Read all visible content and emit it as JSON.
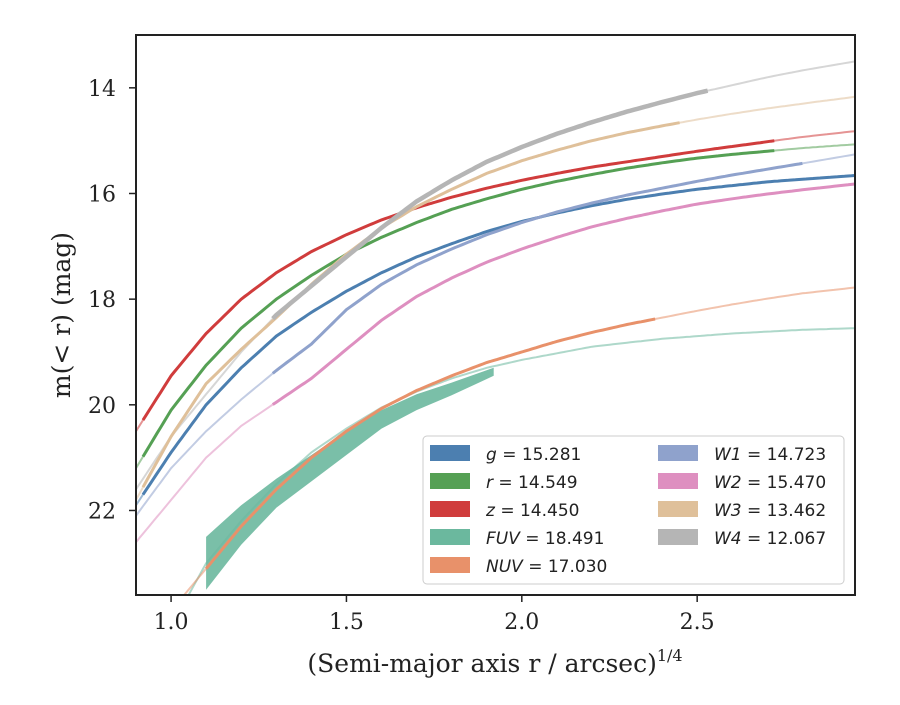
{
  "chart_data": {
    "type": "line",
    "title": "",
    "xlabel": "(Semi-major axis r / arcsec)",
    "xlabel_exponent": "1/4",
    "ylabel": "m(< r) (mag)",
    "xlim": [
      0.9,
      2.95
    ],
    "ylim": [
      23.6,
      13.0
    ],
    "y_inverted": true,
    "grid": false,
    "legend_position": "lower-right",
    "x_ticks": [
      1.0,
      1.5,
      2.0,
      2.5
    ],
    "x_tick_labels": [
      "1.0",
      "1.5",
      "2.0",
      "2.5"
    ],
    "y_ticks": [
      14,
      16,
      18,
      20,
      22
    ],
    "y_tick_labels": [
      "14",
      "16",
      "18",
      "20",
      "22"
    ],
    "series": [
      {
        "name": "g",
        "legend_value": "15.281",
        "color": "#4c7fb0",
        "x_data_min": 0.92,
        "x_data_max": 2.95,
        "x": [
          0.9,
          1.0,
          1.1,
          1.2,
          1.3,
          1.4,
          1.5,
          1.6,
          1.7,
          1.8,
          1.9,
          2.0,
          2.1,
          2.2,
          2.3,
          2.4,
          2.5,
          2.6,
          2.7,
          2.8,
          2.95
        ],
        "y": [
          21.9,
          20.9,
          20.0,
          19.3,
          18.7,
          18.25,
          17.85,
          17.5,
          17.2,
          16.95,
          16.72,
          16.53,
          16.37,
          16.23,
          16.11,
          16.01,
          15.92,
          15.85,
          15.78,
          15.73,
          15.66
        ]
      },
      {
        "name": "r",
        "legend_value": "14.549",
        "color": "#55a054",
        "x_data_min": 0.92,
        "x_data_max": 2.72,
        "x": [
          0.9,
          1.0,
          1.1,
          1.2,
          1.3,
          1.4,
          1.5,
          1.6,
          1.7,
          1.8,
          1.9,
          2.0,
          2.1,
          2.2,
          2.3,
          2.4,
          2.5,
          2.6,
          2.7,
          2.8,
          2.95
        ],
        "y": [
          21.2,
          20.1,
          19.25,
          18.55,
          18.0,
          17.55,
          17.15,
          16.83,
          16.55,
          16.3,
          16.1,
          15.92,
          15.77,
          15.64,
          15.52,
          15.42,
          15.33,
          15.26,
          15.2,
          15.14,
          15.07
        ]
      },
      {
        "name": "z",
        "legend_value": "14.450",
        "color": "#d03c3c",
        "x_data_min": 0.92,
        "x_data_max": 2.72,
        "x": [
          0.9,
          1.0,
          1.1,
          1.2,
          1.3,
          1.4,
          1.5,
          1.6,
          1.7,
          1.8,
          1.9,
          2.0,
          2.1,
          2.2,
          2.3,
          2.4,
          2.5,
          2.6,
          2.7,
          2.8,
          2.95
        ],
        "y": [
          20.5,
          19.45,
          18.65,
          18.0,
          17.5,
          17.1,
          16.78,
          16.5,
          16.27,
          16.07,
          15.9,
          15.75,
          15.62,
          15.5,
          15.4,
          15.3,
          15.2,
          15.11,
          15.02,
          14.93,
          14.82
        ]
      },
      {
        "name": "FUV",
        "legend_value": "18.491",
        "color": "#6bb89e",
        "x_data_min": 1.1,
        "x_data_max": 1.92,
        "band": true,
        "x": [
          0.9,
          1.0,
          1.1,
          1.2,
          1.3,
          1.4,
          1.5,
          1.6,
          1.7,
          1.8,
          1.9,
          2.0,
          2.2,
          2.4,
          2.6,
          2.8,
          2.95
        ],
        "y": [
          25.0,
          24.2,
          23.0,
          22.2,
          21.5,
          20.9,
          20.45,
          20.05,
          19.75,
          19.5,
          19.3,
          19.15,
          18.9,
          18.75,
          18.65,
          18.58,
          18.55
        ],
        "band_x": [
          1.1,
          1.2,
          1.3,
          1.4,
          1.5,
          1.6,
          1.7,
          1.8,
          1.92
        ],
        "band_lower": [
          22.5,
          21.9,
          21.4,
          20.95,
          20.5,
          20.1,
          19.8,
          19.58,
          19.3
        ],
        "band_upper": [
          23.5,
          22.65,
          21.95,
          21.45,
          20.95,
          20.45,
          20.1,
          19.82,
          19.45
        ]
      },
      {
        "name": "NUV",
        "legend_value": "17.030",
        "color": "#e8916a",
        "x_data_min": 1.1,
        "x_data_max": 2.38,
        "x": [
          0.9,
          1.0,
          1.1,
          1.2,
          1.3,
          1.4,
          1.5,
          1.6,
          1.7,
          1.8,
          1.9,
          2.0,
          2.1,
          2.2,
          2.3,
          2.4,
          2.5,
          2.6,
          2.7,
          2.8,
          2.95
        ],
        "y": [
          24.8,
          23.9,
          23.1,
          22.3,
          21.6,
          21.0,
          20.5,
          20.07,
          19.73,
          19.45,
          19.2,
          19.0,
          18.8,
          18.63,
          18.48,
          18.35,
          18.22,
          18.1,
          17.99,
          17.89,
          17.78
        ]
      },
      {
        "name": "W1",
        "legend_value": "14.723",
        "color": "#8fa2cc",
        "x_data_min": 1.29,
        "x_data_max": 2.8,
        "x": [
          0.9,
          1.0,
          1.1,
          1.2,
          1.3,
          1.4,
          1.5,
          1.6,
          1.7,
          1.8,
          1.9,
          2.0,
          2.1,
          2.2,
          2.3,
          2.4,
          2.5,
          2.6,
          2.7,
          2.8,
          2.95
        ],
        "y": [
          22.1,
          21.2,
          20.5,
          19.9,
          19.35,
          18.85,
          18.2,
          17.72,
          17.35,
          17.05,
          16.78,
          16.55,
          16.35,
          16.18,
          16.03,
          15.9,
          15.77,
          15.65,
          15.54,
          15.43,
          15.26
        ]
      },
      {
        "name": "W2",
        "legend_value": "15.470",
        "color": "#de8fc0",
        "x_data_min": 1.29,
        "x_data_max": 2.95,
        "x": [
          0.9,
          1.0,
          1.1,
          1.2,
          1.3,
          1.4,
          1.5,
          1.6,
          1.7,
          1.8,
          1.9,
          2.0,
          2.1,
          2.2,
          2.3,
          2.4,
          2.5,
          2.6,
          2.7,
          2.8,
          2.95
        ],
        "y": [
          22.6,
          21.8,
          21.0,
          20.4,
          19.95,
          19.5,
          18.95,
          18.4,
          17.95,
          17.6,
          17.3,
          17.05,
          16.83,
          16.63,
          16.47,
          16.33,
          16.2,
          16.1,
          16.01,
          15.93,
          15.82
        ]
      },
      {
        "name": "W3",
        "legend_value": "13.462",
        "color": "#dfc09a",
        "x_data_min": 0.92,
        "x_data_max": 2.45,
        "x": [
          0.9,
          1.0,
          1.1,
          1.2,
          1.3,
          1.4,
          1.5,
          1.6,
          1.7,
          1.8,
          1.9,
          2.0,
          2.1,
          2.2,
          2.3,
          2.4,
          2.5,
          2.6,
          2.7,
          2.8,
          2.95
        ],
        "y": [
          21.8,
          20.6,
          19.6,
          18.95,
          18.35,
          17.72,
          17.15,
          16.65,
          16.25,
          15.92,
          15.62,
          15.38,
          15.18,
          15.0,
          14.85,
          14.72,
          14.6,
          14.49,
          14.39,
          14.3,
          14.17
        ]
      },
      {
        "name": "W4",
        "legend_value": "12.067",
        "color": "#b5b5b5",
        "x_data_min": 1.29,
        "x_data_max": 2.53,
        "x": [
          0.9,
          1.0,
          1.1,
          1.2,
          1.3,
          1.4,
          1.5,
          1.6,
          1.7,
          1.8,
          1.9,
          2.0,
          2.1,
          2.2,
          2.3,
          2.4,
          2.5,
          2.6,
          2.7,
          2.8,
          2.95
        ],
        "y": [
          21.6,
          20.6,
          19.8,
          19.0,
          18.3,
          17.75,
          17.2,
          16.65,
          16.15,
          15.75,
          15.4,
          15.12,
          14.87,
          14.65,
          14.45,
          14.27,
          14.1,
          13.95,
          13.8,
          13.67,
          13.5
        ]
      }
    ]
  }
}
